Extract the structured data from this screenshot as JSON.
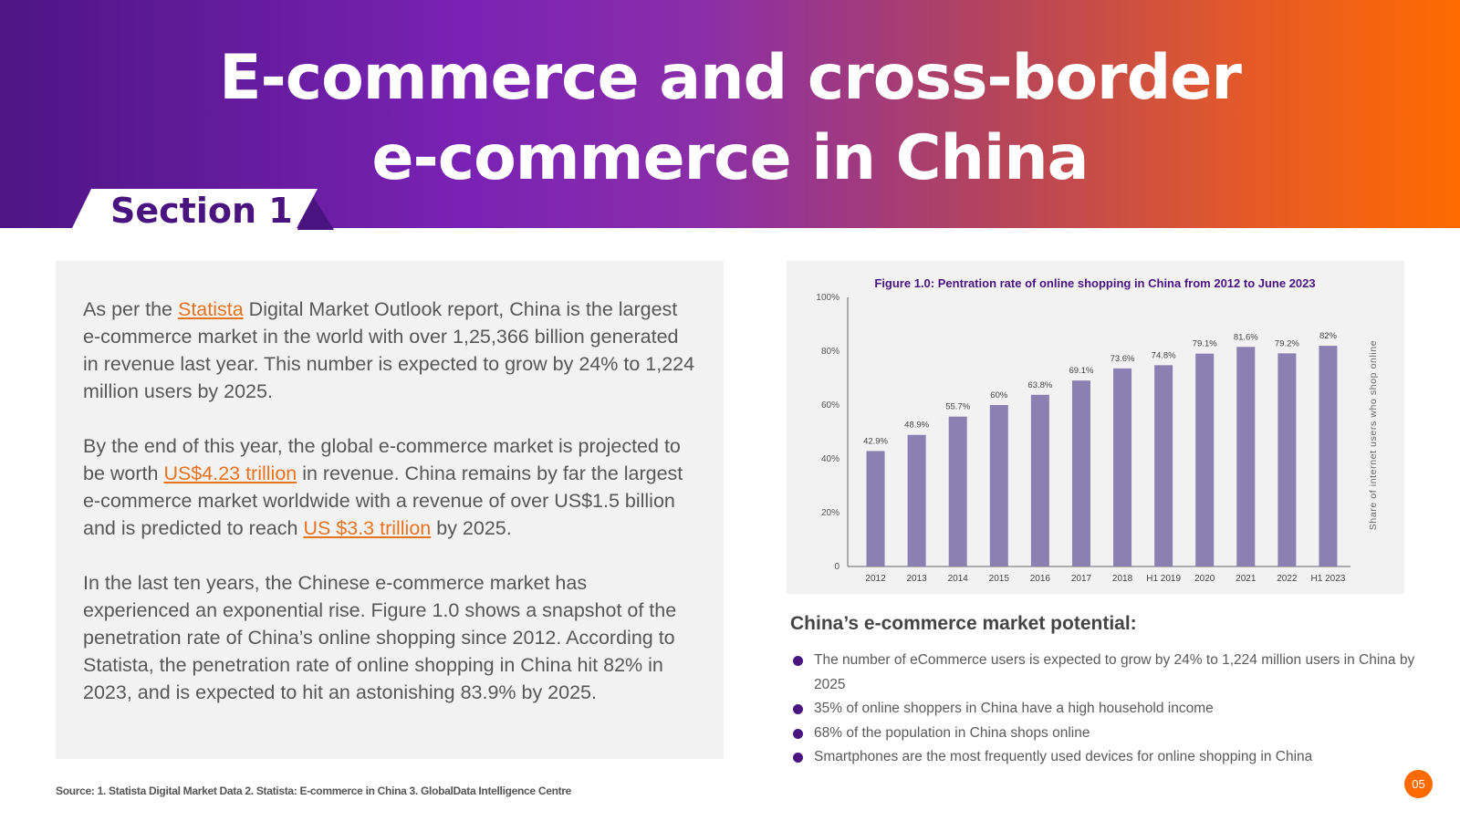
{
  "header": {
    "title_line1": "E-commerce and cross-border",
    "title_line2": "e-commerce in China",
    "section_label": "Section 1"
  },
  "left_panel": {
    "p1_before_link": "As per the ",
    "p1_link": "Statista",
    "p1_after_link": " Digital Market Outlook report, China is the largest e-commerce market in the world with over 1,25,366 billion generated in revenue last year. This number is expected to grow by 24% to 1,224 million users by 2025.",
    "p2_part1": "By the end of this year, the global e-commerce market is projected to be worth ",
    "p2_link1": "US$4.23 trillion",
    "p2_part2": " in revenue. China remains by far the largest e-commerce market worldwide with a revenue of over US$1.5 billion and is predicted to reach ",
    "p2_link2": "US $3.3 trillion",
    "p2_part3": " by 2025.",
    "p3": "In the last ten years, the Chinese e-commerce market has experienced an exponential rise. Figure 1.0 shows a snapshot of the penetration rate of China’s online shopping since 2012. According to Statista, the penetration rate of online shopping in China hit 82% in 2023,  and is expected to hit an astonishing 83.9% by 2025."
  },
  "chart_data": {
    "type": "bar",
    "title": "Figure 1.0: Pentration rate of online shopping in China from 2012 to June 2023",
    "xlabel": "",
    "ylabel": "Share of internet users who shop online",
    "categories": [
      "2012",
      "2013",
      "2014",
      "2015",
      "2016",
      "2017",
      "2018",
      "H1 2019",
      "2020",
      "2021",
      "2022",
      "H1 2023"
    ],
    "values": [
      42.9,
      48.9,
      55.7,
      60,
      63.8,
      69.1,
      73.6,
      74.8,
      79.1,
      81.6,
      79.2,
      82
    ],
    "value_labels": [
      "42.9%",
      "48.9%",
      "55.7%",
      "60%",
      "63.8%",
      "69.1%",
      "73.6%",
      "74.8%",
      "79.1%",
      "81.6%",
      "79.2%",
      "82%"
    ],
    "y_ticks": [
      "0",
      "20%",
      "40%",
      "60%",
      "80%",
      "100%"
    ],
    "ylim": [
      0,
      100
    ],
    "grid": false,
    "bar_color": "#8a80b2"
  },
  "market": {
    "heading": "China’s e-commerce market potential:",
    "items": [
      "The number of eCommerce users is expected to grow by 24% to 1,224 million users in China by 2025",
      "35% of online shoppers in China have a high household income",
      "68% of the population in China shops online",
      "Smartphones are the most frequently used devices for online shopping in China"
    ]
  },
  "footer": {
    "source": "Source: 1. Statista Digital Market Data  2. Statista: E-commerce in China  3. GlobalData Intelligence Centre",
    "page_number": "05"
  }
}
